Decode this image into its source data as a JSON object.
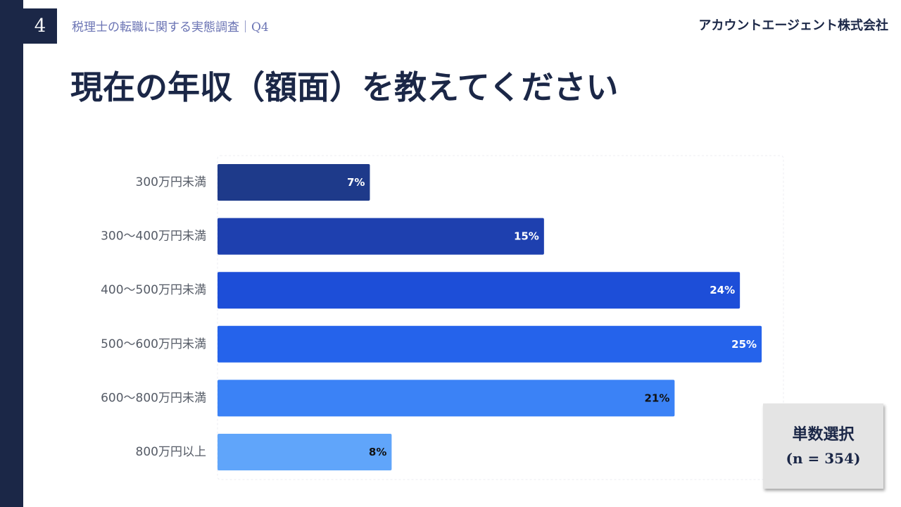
{
  "header": {
    "page_number": "4",
    "section_title": "税理士の転職に関する実態調査｜Q4",
    "company": "アカウントエージェント株式会社"
  },
  "title": "現在の年収（額面）を教えてください",
  "note": {
    "line1": "単数選択",
    "line2": "(n = 354)"
  },
  "chart_data": {
    "type": "bar",
    "orientation": "horizontal",
    "categories": [
      "300万円未満",
      "300〜400万円未満",
      "400〜500万円未満",
      "500〜600万円未満",
      "600〜800万円未満",
      "800万円以上"
    ],
    "values": [
      7,
      15,
      24,
      25,
      21,
      8
    ],
    "value_labels": [
      "7%",
      "15%",
      "24%",
      "25%",
      "21%",
      "8%"
    ],
    "unit": "%",
    "xlim": [
      0,
      26
    ],
    "grid": false,
    "legend": "none",
    "bar_colors": [
      "#1e3a8a",
      "#1e40af",
      "#1d4ed8",
      "#2563eb",
      "#3b82f6",
      "#60a5fa"
    ],
    "label_colors": [
      "#ffffff",
      "#ffffff",
      "#ffffff",
      "#ffffff",
      "#111111",
      "#111111"
    ]
  }
}
